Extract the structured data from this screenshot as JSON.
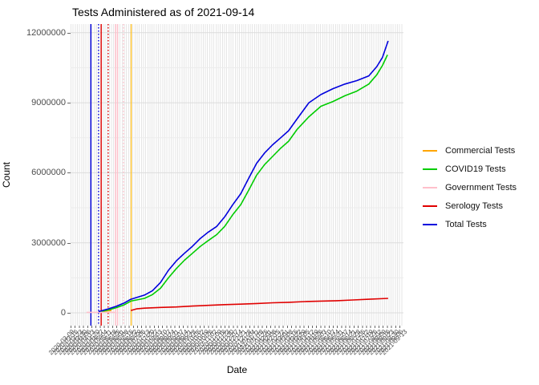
{
  "chart": {
    "title": "Tests Administered as of 2021-09-14",
    "xlabel": "Date",
    "ylabel": "Count"
  },
  "chart_data": {
    "type": "line",
    "title": "Tests Administered as of 2021-09-14",
    "xlabel": "Date",
    "ylabel": "Count",
    "ylim": [
      0,
      12600000
    ],
    "y_ticks": [
      0,
      3000000,
      6000000,
      9000000,
      12000000
    ],
    "y_tick_labels": [
      "0",
      "3000000",
      "6000000",
      "9000000",
      "12000000"
    ],
    "grid": "on",
    "legend_position": "right",
    "x_axis": {
      "kind": "date",
      "tick_labels_note": "tick labels heavily overlapped and illegible in source; weekly dates reconstructed",
      "tick_labels": [
        "2020-03-09",
        "2020-03-16",
        "2020-03-23",
        "2020-03-30",
        "2020-04-06",
        "2020-04-13",
        "2020-04-20",
        "2020-04-27",
        "2020-05-04",
        "2020-05-11",
        "2020-05-18",
        "2020-05-25",
        "2020-06-01",
        "2020-06-08",
        "2020-06-15",
        "2020-06-22",
        "2020-06-29",
        "2020-07-06",
        "2020-07-13",
        "2020-07-20",
        "2020-07-27",
        "2020-08-03",
        "2020-08-10",
        "2020-08-17",
        "2020-08-24",
        "2020-08-31",
        "2020-09-07",
        "2020-09-14",
        "2020-09-21",
        "2020-09-28",
        "2020-10-05",
        "2020-10-12",
        "2020-10-19",
        "2020-10-26",
        "2020-11-02",
        "2020-11-09",
        "2020-11-16",
        "2020-11-23",
        "2020-11-30",
        "2020-12-07",
        "2020-12-14",
        "2020-12-21",
        "2020-12-28",
        "2021-01-04",
        "2021-01-11",
        "2021-01-18",
        "2021-01-25",
        "2021-02-01",
        "2021-02-08",
        "2021-02-15",
        "2021-02-22",
        "2021-03-01",
        "2021-03-08",
        "2021-03-15",
        "2021-03-22",
        "2021-03-29",
        "2021-04-05",
        "2021-04-12",
        "2021-04-19",
        "2021-04-26",
        "2021-05-03",
        "2021-05-10",
        "2021-05-17",
        "2021-05-24",
        "2021-05-31",
        "2021-06-07",
        "2021-06-14",
        "2021-06-21",
        "2021-06-28",
        "2021-07-05",
        "2021-07-12",
        "2021-07-19",
        "2021-07-26",
        "2021-08-02",
        "2021-08-09",
        "2021-08-16",
        "2021-08-23",
        "2021-08-30",
        "2021-09-06",
        "2021-09-13"
      ]
    },
    "series": [
      {
        "name": "Commercial Tests",
        "color": "#ffa500",
        "points": [
          [
            0.089,
            30000
          ],
          [
            0.106,
            80000
          ],
          [
            0.123,
            100000
          ]
        ]
      },
      {
        "name": "COVID19 Tests",
        "color": "#00cc00",
        "points": [
          [
            0.084,
            30000
          ],
          [
            0.113,
            120000
          ],
          [
            0.137,
            220000
          ],
          [
            0.161,
            340000
          ],
          [
            0.181,
            500000
          ],
          [
            0.222,
            620000
          ],
          [
            0.246,
            780000
          ],
          [
            0.27,
            1050000
          ],
          [
            0.294,
            1500000
          ],
          [
            0.318,
            1900000
          ],
          [
            0.342,
            2250000
          ],
          [
            0.366,
            2550000
          ],
          [
            0.39,
            2850000
          ],
          [
            0.414,
            3100000
          ],
          [
            0.439,
            3350000
          ],
          [
            0.463,
            3700000
          ],
          [
            0.487,
            4200000
          ],
          [
            0.511,
            4630000
          ],
          [
            0.535,
            5250000
          ],
          [
            0.559,
            5900000
          ],
          [
            0.583,
            6350000
          ],
          [
            0.607,
            6700000
          ],
          [
            0.631,
            7050000
          ],
          [
            0.655,
            7350000
          ],
          [
            0.68,
            7850000
          ],
          [
            0.716,
            8400000
          ],
          [
            0.752,
            8850000
          ],
          [
            0.788,
            9050000
          ],
          [
            0.824,
            9300000
          ],
          [
            0.86,
            9500000
          ],
          [
            0.896,
            9800000
          ],
          [
            0.92,
            10200000
          ],
          [
            0.937,
            10600000
          ],
          [
            0.952,
            11050000
          ]
        ]
      },
      {
        "name": "Government Tests",
        "color": "#ffc0cb",
        "points": [
          [
            0.048,
            20000
          ],
          [
            0.133,
            20000
          ]
        ]
      },
      {
        "name": "Serology Tests",
        "color": "#e00000",
        "points": [
          [
            0.181,
            100000
          ],
          [
            0.198,
            170000
          ],
          [
            0.222,
            200000
          ],
          [
            0.27,
            230000
          ],
          [
            0.318,
            250000
          ],
          [
            0.366,
            290000
          ],
          [
            0.414,
            320000
          ],
          [
            0.463,
            350000
          ],
          [
            0.511,
            370000
          ],
          [
            0.559,
            400000
          ],
          [
            0.607,
            430000
          ],
          [
            0.655,
            450000
          ],
          [
            0.704,
            480000
          ],
          [
            0.752,
            500000
          ],
          [
            0.8,
            520000
          ],
          [
            0.848,
            550000
          ],
          [
            0.896,
            580000
          ],
          [
            0.954,
            620000
          ]
        ]
      },
      {
        "name": "Total Tests",
        "color": "#0000dd",
        "points": [
          [
            0.084,
            50000
          ],
          [
            0.113,
            170000
          ],
          [
            0.137,
            280000
          ],
          [
            0.161,
            420000
          ],
          [
            0.181,
            580000
          ],
          [
            0.222,
            760000
          ],
          [
            0.246,
            950000
          ],
          [
            0.27,
            1300000
          ],
          [
            0.294,
            1820000
          ],
          [
            0.318,
            2230000
          ],
          [
            0.342,
            2550000
          ],
          [
            0.366,
            2850000
          ],
          [
            0.39,
            3190000
          ],
          [
            0.414,
            3460000
          ],
          [
            0.439,
            3700000
          ],
          [
            0.463,
            4110000
          ],
          [
            0.487,
            4630000
          ],
          [
            0.511,
            5100000
          ],
          [
            0.535,
            5760000
          ],
          [
            0.559,
            6410000
          ],
          [
            0.583,
            6850000
          ],
          [
            0.607,
            7200000
          ],
          [
            0.631,
            7500000
          ],
          [
            0.655,
            7800000
          ],
          [
            0.68,
            8300000
          ],
          [
            0.716,
            9000000
          ],
          [
            0.752,
            9350000
          ],
          [
            0.788,
            9600000
          ],
          [
            0.824,
            9800000
          ],
          [
            0.86,
            9950000
          ],
          [
            0.896,
            10150000
          ],
          [
            0.92,
            10550000
          ],
          [
            0.937,
            10950000
          ],
          [
            0.954,
            11650000
          ]
        ]
      }
    ],
    "reference_vlines": [
      {
        "x_frac": 0.061,
        "color": "#0000dd",
        "style": "solid"
      },
      {
        "x_frac": 0.084,
        "color": "#0000dd",
        "style": "dotted"
      },
      {
        "x_frac": 0.092,
        "color": "#e00000",
        "style": "solid"
      },
      {
        "x_frac": 0.113,
        "color": "#e00000",
        "style": "dotted"
      },
      {
        "x_frac": 0.135,
        "color": "#ffc0cb",
        "style": "solid"
      },
      {
        "x_frac": 0.141,
        "color": "#ffc0cb",
        "style": "solid"
      },
      {
        "x_frac": 0.159,
        "color": "#ffc0cb",
        "style": "dotted"
      },
      {
        "x_frac": 0.182,
        "color": "#ffc125",
        "style": "solid"
      }
    ],
    "style": {
      "background": "#ffffff",
      "major_gridline_color": "#dcdcdc",
      "minor_gridline_color": "#ececec",
      "tick_label_color": "#4d4d4d"
    }
  }
}
